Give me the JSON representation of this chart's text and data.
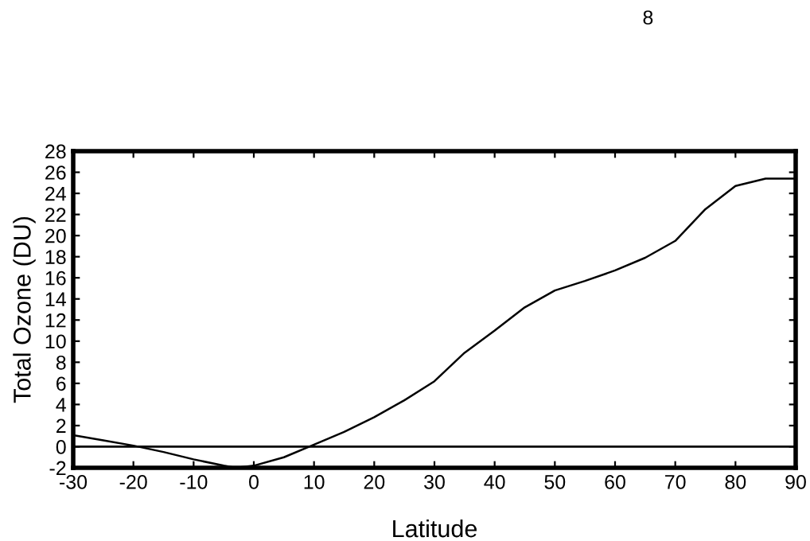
{
  "chart_data": {
    "type": "line",
    "xlabel": "Latitude",
    "ylabel": "Total Ozone (DU)",
    "annotations": [
      "8"
    ],
    "x": [
      -30,
      -25,
      -20,
      -15,
      -10,
      -5,
      -3,
      0,
      5,
      10,
      15,
      20,
      25,
      30,
      35,
      40,
      45,
      50,
      55,
      60,
      65,
      70,
      75,
      80,
      85,
      90
    ],
    "series": [
      {
        "color": "#000000",
        "values": [
          1.1,
          0.6,
          0.1,
          -0.5,
          -1.2,
          -1.8,
          -2.0,
          -1.8,
          -1.0,
          0.2,
          1.4,
          2.8,
          4.4,
          6.2,
          8.9,
          11.0,
          13.2,
          14.8,
          15.7,
          16.7,
          17.9,
          19.5,
          22.5,
          24.7,
          25.4,
          25.4
        ]
      }
    ],
    "xlim": [
      -30,
      90
    ],
    "xticks": [
      -30,
      -20,
      -10,
      0,
      10,
      20,
      30,
      40,
      50,
      60,
      70,
      80,
      90
    ],
    "ylim": [
      -2,
      28
    ],
    "yticks": [
      -2,
      0,
      2,
      4,
      6,
      8,
      10,
      12,
      14,
      16,
      18,
      20,
      22,
      24,
      26,
      28
    ],
    "ref_lines": [
      {
        "axis": "y",
        "value": 0,
        "color": "#000000"
      }
    ],
    "grid": false,
    "legend": false,
    "marker": "none",
    "line_style": "solid"
  }
}
